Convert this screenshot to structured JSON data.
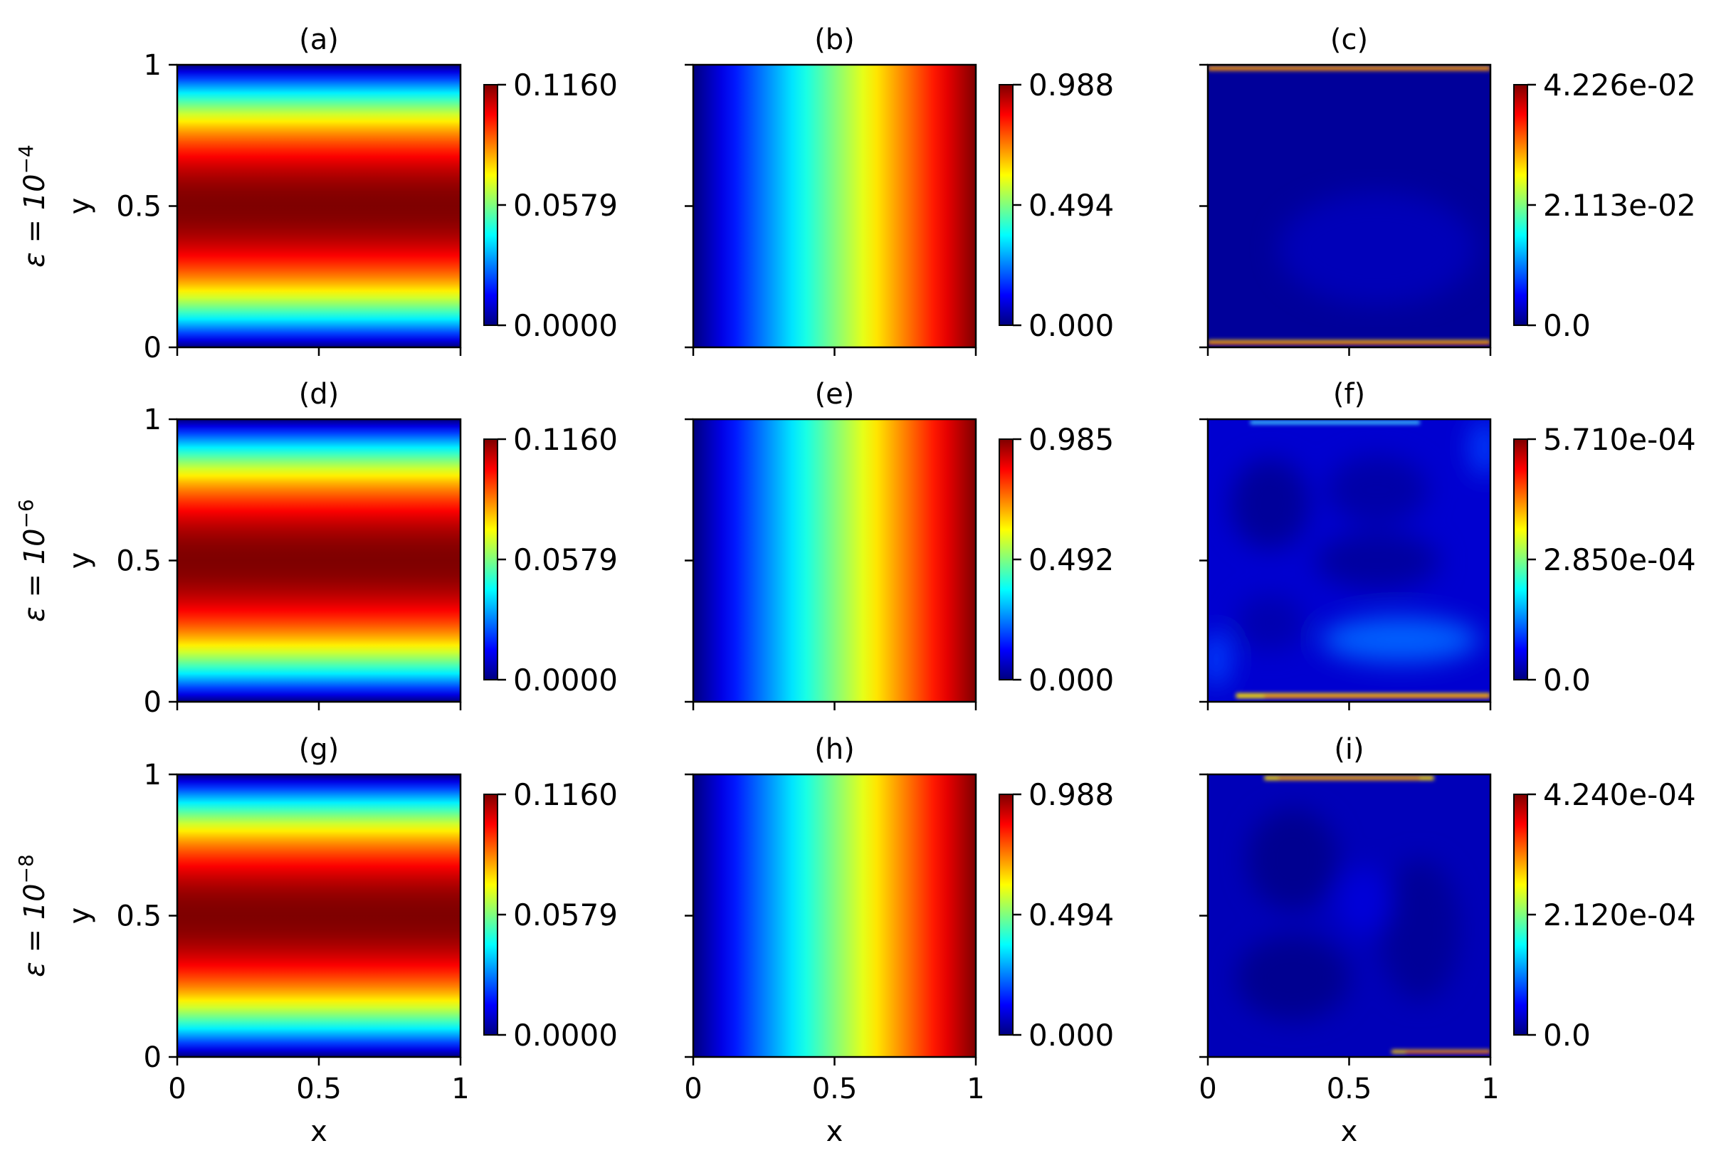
{
  "colors": {
    "jet_stops": [
      "#00007f",
      "#0000ff",
      "#007fff",
      "#00ffff",
      "#7fff7f",
      "#ffff00",
      "#ff7f00",
      "#ff0000",
      "#7f0000"
    ]
  },
  "row_labels": [
    {
      "prefix": "ε = 10",
      "exp": "−4"
    },
    {
      "prefix": "ε = 10",
      "exp": "−6"
    },
    {
      "prefix": "ε = 10",
      "exp": "−8"
    }
  ],
  "chart_data": [
    {
      "type": "heatmap",
      "title": "(a)",
      "field": "y_parabola",
      "xlabel": "",
      "ylabel": "y",
      "xticks": [],
      "yticks": [
        "0",
        "0.5",
        "1"
      ],
      "xlim": [
        0,
        1
      ],
      "ylim": [
        0,
        1
      ],
      "colorbar_ticks": [
        "0.0000",
        "0.0579",
        "0.1160"
      ],
      "colorbar_range": [
        0,
        0.116
      ]
    },
    {
      "type": "heatmap",
      "title": "(b)",
      "field": "x_linear",
      "xlabel": "",
      "ylabel": "",
      "xticks": [],
      "yticks": [],
      "xlim": [
        0,
        1
      ],
      "ylim": [
        0,
        1
      ],
      "colorbar_ticks": [
        "0.000",
        "0.494",
        "0.988"
      ],
      "colorbar_range": [
        0,
        0.988
      ]
    },
    {
      "type": "heatmap",
      "title": "(c)",
      "field": "error_boundary",
      "xlabel": "",
      "ylabel": "",
      "xticks": [],
      "yticks": [],
      "xlim": [
        0,
        1
      ],
      "ylim": [
        0,
        1
      ],
      "colorbar_ticks": [
        "0.0",
        "2.113e-02",
        "4.226e-02"
      ],
      "colorbar_range": [
        0,
        0.04226
      ]
    },
    {
      "type": "heatmap",
      "title": "(d)",
      "field": "y_parabola",
      "xlabel": "",
      "ylabel": "y",
      "xticks": [],
      "yticks": [
        "0",
        "0.5",
        "1"
      ],
      "xlim": [
        0,
        1
      ],
      "ylim": [
        0,
        1
      ],
      "colorbar_ticks": [
        "0.0000",
        "0.0579",
        "0.1160"
      ],
      "colorbar_range": [
        0,
        0.116
      ]
    },
    {
      "type": "heatmap",
      "title": "(e)",
      "field": "x_linear",
      "xlabel": "",
      "ylabel": "",
      "xticks": [],
      "yticks": [],
      "xlim": [
        0,
        1
      ],
      "ylim": [
        0,
        1
      ],
      "colorbar_ticks": [
        "0.000",
        "0.492",
        "0.985"
      ],
      "colorbar_range": [
        0,
        0.985
      ]
    },
    {
      "type": "heatmap",
      "title": "(f)",
      "field": "error_blobs",
      "xlabel": "",
      "ylabel": "",
      "xticks": [],
      "yticks": [],
      "xlim": [
        0,
        1
      ],
      "ylim": [
        0,
        1
      ],
      "colorbar_ticks": [
        "0.0",
        "2.850e-04",
        "5.710e-04"
      ],
      "colorbar_range": [
        0,
        0.000571
      ]
    },
    {
      "type": "heatmap",
      "title": "(g)",
      "field": "y_parabola",
      "xlabel": "x",
      "ylabel": "y",
      "xticks": [
        "0",
        "0.5",
        "1"
      ],
      "yticks": [
        "0",
        "0.5",
        "1"
      ],
      "xlim": [
        0,
        1
      ],
      "ylim": [
        0,
        1
      ],
      "colorbar_ticks": [
        "0.0000",
        "0.0579",
        "0.1160"
      ],
      "colorbar_range": [
        0,
        0.116
      ]
    },
    {
      "type": "heatmap",
      "title": "(h)",
      "field": "x_linear",
      "xlabel": "x",
      "ylabel": "",
      "xticks": [
        "0",
        "0.5",
        "1"
      ],
      "yticks": [],
      "xlim": [
        0,
        1
      ],
      "ylim": [
        0,
        1
      ],
      "colorbar_ticks": [
        "0.000",
        "0.494",
        "0.988"
      ],
      "colorbar_range": [
        0,
        0.988
      ]
    },
    {
      "type": "heatmap",
      "title": "(i)",
      "field": "error_low",
      "xlabel": "x",
      "ylabel": "",
      "xticks": [
        "0",
        "0.5",
        "1"
      ],
      "yticks": [],
      "xlim": [
        0,
        1
      ],
      "ylim": [
        0,
        1
      ],
      "colorbar_ticks": [
        "0.0",
        "2.120e-04",
        "4.240e-04"
      ],
      "colorbar_range": [
        0,
        0.000424
      ]
    }
  ]
}
